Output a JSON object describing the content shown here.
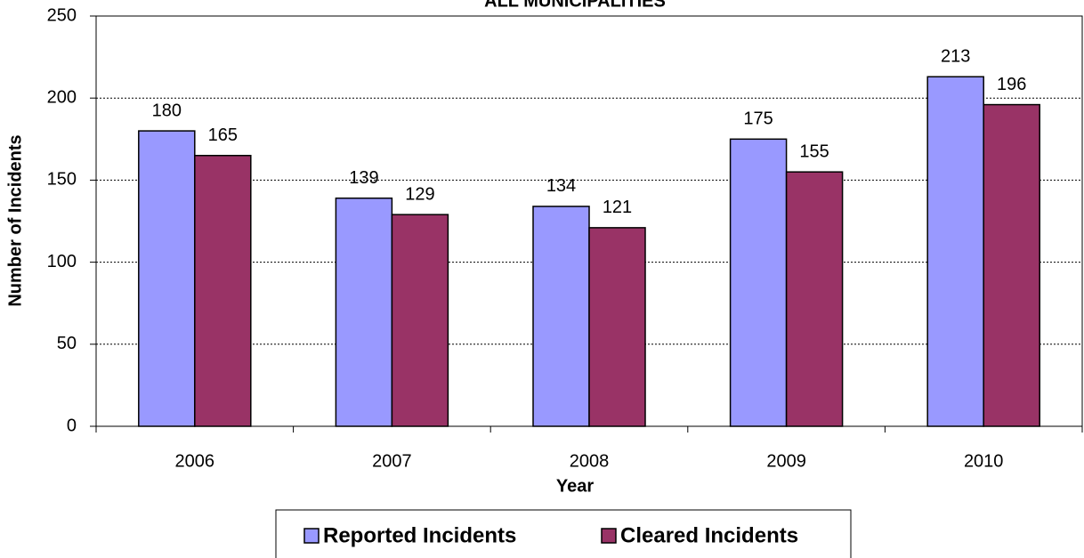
{
  "chart_data": {
    "type": "bar",
    "title": "ALL MUNICIPALITIES",
    "x_label": "Year",
    "y_label": "Number of Incidents",
    "categories": [
      "2006",
      "2007",
      "2008",
      "2009",
      "2010"
    ],
    "series": [
      {
        "name": "Reported Incidents",
        "color": "#9999ff",
        "values": [
          180,
          139,
          134,
          175,
          213
        ]
      },
      {
        "name": "Cleared Incidents",
        "color": "#993366",
        "values": [
          165,
          129,
          121,
          155,
          196
        ]
      }
    ],
    "ylim": [
      0,
      250
    ],
    "yticks": [
      0,
      50,
      100,
      150,
      200,
      250
    ],
    "grid": true,
    "legend": "bottom"
  }
}
